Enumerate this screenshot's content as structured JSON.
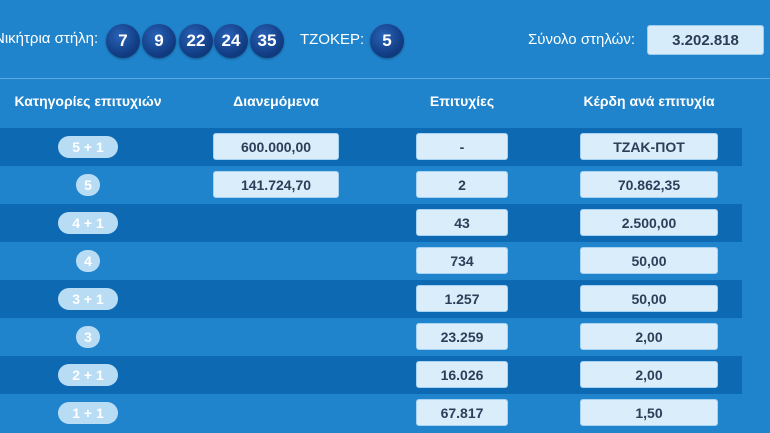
{
  "header": {
    "winning_label": "Νικήτρια στήλη:",
    "numbers": [
      "7",
      "9",
      "22",
      "24",
      "35"
    ],
    "joker_label": "ΤΖΟΚΕΡ:",
    "joker": "5",
    "total_label": "Σύνολο στηλών:",
    "total_value": "3.202.818"
  },
  "columns": {
    "categories": "Κατηγορίες επιτυχιών",
    "distributed": "Διανεμόμενα",
    "winners": "Επιτυχίες",
    "prize": "Κέρδη ανά επιτυχία"
  },
  "rows": [
    {
      "category": "5 + 1",
      "distributed": "600.000,00",
      "winners": "-",
      "prize": "ΤΖΑΚ-ΠΟΤ"
    },
    {
      "category": "5",
      "distributed": "141.724,70",
      "winners": "2",
      "prize": "70.862,35"
    },
    {
      "category": "4 + 1",
      "distributed": "",
      "winners": "43",
      "prize": "2.500,00"
    },
    {
      "category": "4",
      "distributed": "",
      "winners": "734",
      "prize": "50,00"
    },
    {
      "category": "3 + 1",
      "distributed": "",
      "winners": "1.257",
      "prize": "50,00"
    },
    {
      "category": "3",
      "distributed": "",
      "winners": "23.259",
      "prize": "2,00"
    },
    {
      "category": "2 + 1",
      "distributed": "",
      "winners": "16.026",
      "prize": "2,00"
    },
    {
      "category": "1 + 1",
      "distributed": "",
      "winners": "67.817",
      "prize": "1,50"
    }
  ]
}
